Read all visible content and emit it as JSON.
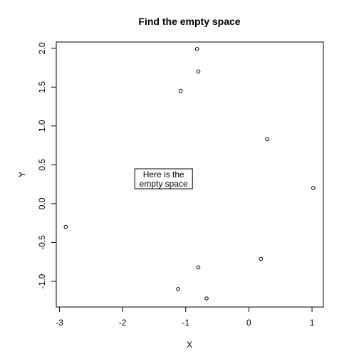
{
  "chart_data": {
    "type": "scatter",
    "title": "Find the empty space",
    "xlabel": "X",
    "ylabel": "Y",
    "xlim": [
      -3.05,
      1.18
    ],
    "ylim": [
      -1.33,
      2.08
    ],
    "xticks": [
      {
        "value": -3,
        "label": "-3"
      },
      {
        "value": -2,
        "label": "-2"
      },
      {
        "value": -1,
        "label": "-1"
      },
      {
        "value": 0,
        "label": "0"
      },
      {
        "value": 1,
        "label": "1"
      }
    ],
    "yticks": [
      {
        "value": -1.0,
        "label": "-1.0"
      },
      {
        "value": -0.5,
        "label": "-0.5"
      },
      {
        "value": 0.0,
        "label": "0.0"
      },
      {
        "value": 0.5,
        "label": "0.5"
      },
      {
        "value": 1.0,
        "label": "1.0"
      },
      {
        "value": 1.5,
        "label": "1.5"
      },
      {
        "value": 2.0,
        "label": "2.0"
      }
    ],
    "grid": false,
    "points": [
      {
        "x": -0.82,
        "y": 1.99
      },
      {
        "x": -0.8,
        "y": 1.7
      },
      {
        "x": -1.08,
        "y": 1.45
      },
      {
        "x": 0.29,
        "y": 0.83
      },
      {
        "x": 1.02,
        "y": 0.2
      },
      {
        "x": -2.9,
        "y": -0.3
      },
      {
        "x": 0.19,
        "y": -0.71
      },
      {
        "x": -0.8,
        "y": -0.82
      },
      {
        "x": -1.12,
        "y": -1.1
      },
      {
        "x": -0.67,
        "y": -1.22
      }
    ],
    "annotation": {
      "lines": [
        "Here is the",
        "empty space"
      ],
      "x": -1.35,
      "y": 0.32
    }
  }
}
